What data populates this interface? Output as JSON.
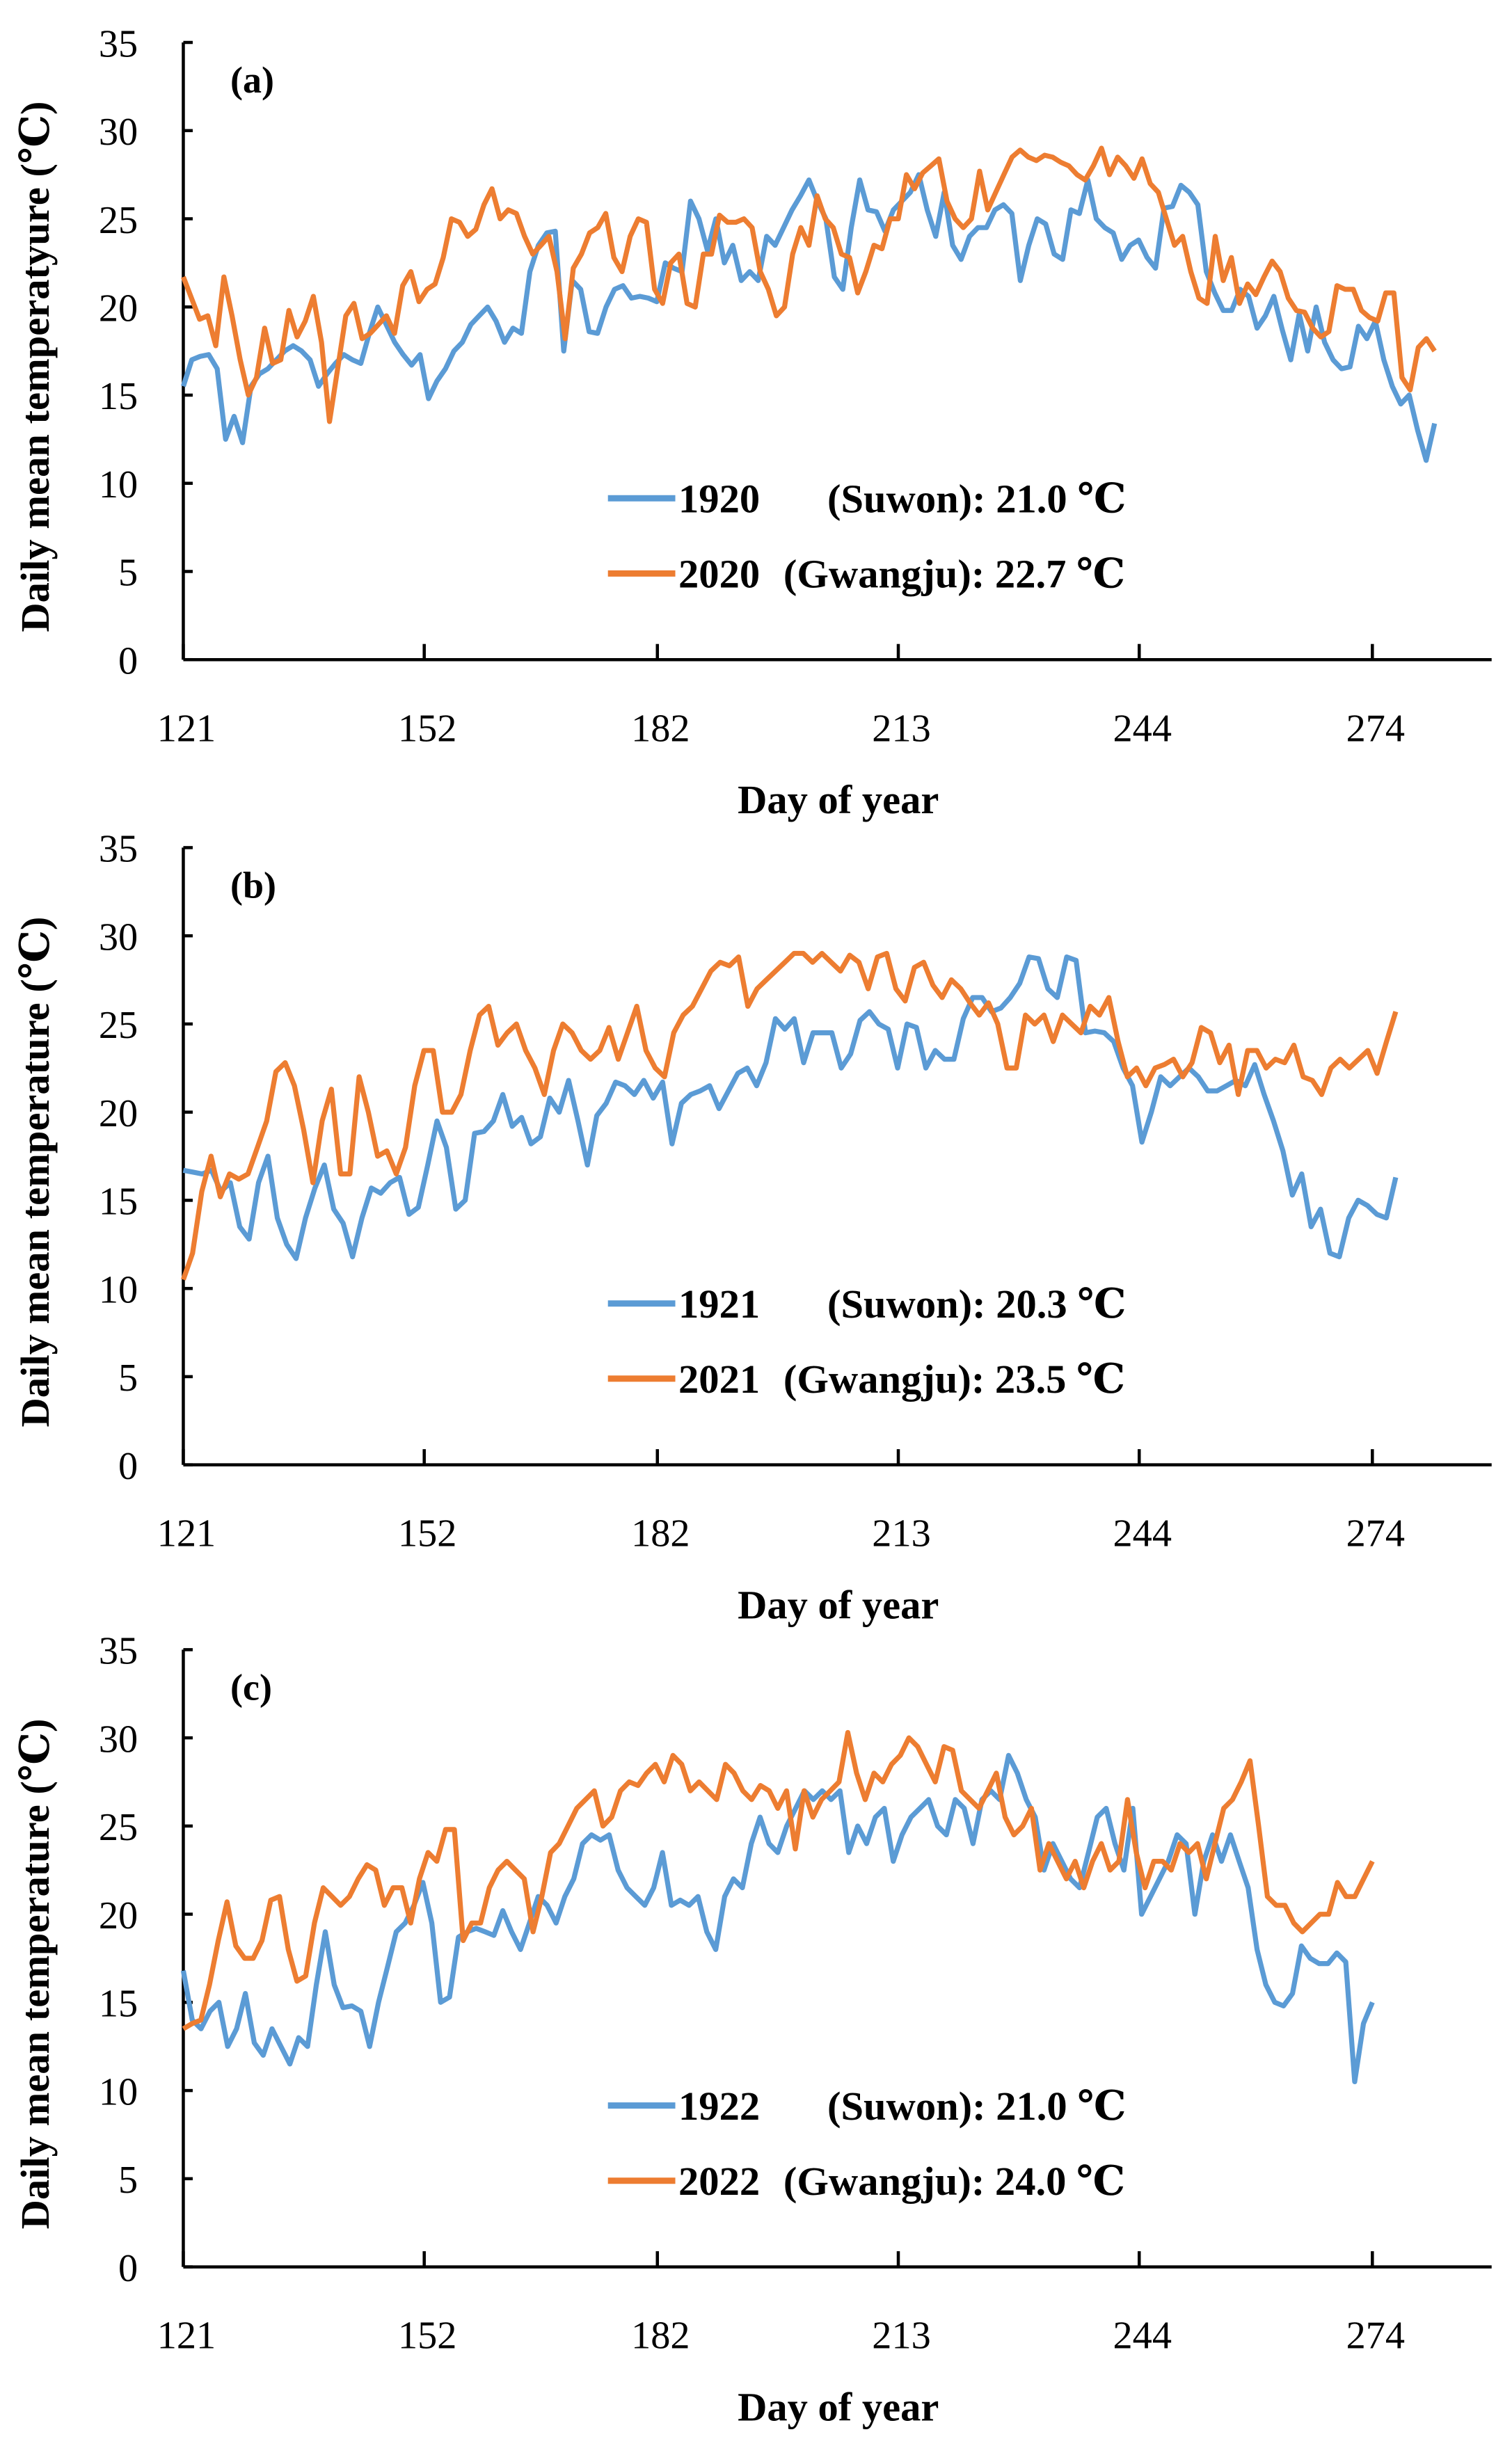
{
  "chart_data": [
    {
      "type": "line",
      "panel_label": "(a)",
      "xlabel": "Day of year",
      "ylabel": "Daily mean temperatyure (℃)",
      "xticks": [
        121,
        152,
        182,
        213,
        244,
        274
      ],
      "yticks": [
        0,
        5,
        10,
        15,
        20,
        25,
        30,
        35
      ],
      "xlim": [
        121,
        290
      ],
      "ylim": [
        0,
        35
      ],
      "grid": false,
      "legend_position": "bottom-center",
      "series": [
        {
          "name": "1920",
          "legend_rest": "(Suwon): 21.0 ℃",
          "color": "#5B9BD5",
          "x_range": [
            121,
            282
          ],
          "values": [
            15.5,
            17,
            17.2,
            17.3,
            16.5,
            12.5,
            13.8,
            12.3,
            15.5,
            16.2,
            16.5,
            17,
            17.5,
            17.8,
            17.5,
            17,
            15.5,
            16.2,
            16.8,
            17.3,
            17,
            16.8,
            18.5,
            20,
            19,
            18,
            17.3,
            16.7,
            17.3,
            14.8,
            15.8,
            16.5,
            17.5,
            18,
            19,
            19.5,
            20,
            19.2,
            18,
            18.8,
            18.5,
            22,
            23.5,
            24.2,
            24.3,
            17.5,
            21.5,
            21,
            18.6,
            18.5,
            20,
            21,
            21.2,
            20.5,
            20.6,
            20.5,
            20.3,
            22.5,
            22.2,
            22,
            26,
            25,
            23.2,
            25,
            22.5,
            23.5,
            21.5,
            22,
            21.5,
            24,
            23.5,
            24.5,
            25.5,
            26.3,
            27.2,
            26,
            25,
            21.7,
            21,
            24.5,
            27.2,
            25.5,
            25.4,
            24.3,
            25.5,
            26,
            26.5,
            27.5,
            25.5,
            24,
            26.5,
            23.5,
            22.7,
            24,
            24.5,
            24.5,
            25.5,
            25.8,
            25.3,
            21.5,
            23.5,
            25,
            24.7,
            23,
            22.7,
            25.5,
            25.3,
            27.2,
            25,
            24.5,
            24.2,
            22.7,
            23.5,
            23.8,
            22.8,
            22.2,
            25.6,
            25.7,
            26.9,
            26.5,
            25.8,
            22,
            20.8,
            19.8,
            19.8,
            21,
            20.6,
            18.8,
            19.5,
            20.6,
            18.7,
            17,
            19.6,
            17.5,
            20,
            18,
            17,
            16.5,
            16.6,
            18.9,
            18.2,
            19.2,
            17,
            15.5,
            14.5,
            15,
            13,
            11.3,
            13.4
          ]
        },
        {
          "name": "2020",
          "legend_rest": "(Gwangju): 22.7 ℃",
          "color": "#ED7D31",
          "x_range": [
            121,
            282
          ],
          "values": [
            21.7,
            20.5,
            19.3,
            19.5,
            17.8,
            21.7,
            19.5,
            17,
            15,
            16,
            18.8,
            16.8,
            17,
            19.8,
            18.3,
            19.2,
            20.6,
            18,
            13.5,
            16.5,
            19.5,
            20.2,
            18.2,
            18.5,
            19,
            19.5,
            18.5,
            21.2,
            22,
            20.3,
            21,
            21.3,
            22.8,
            25,
            24.8,
            24,
            24.4,
            25.8,
            26.7,
            25,
            25.5,
            25.3,
            24,
            23,
            23.5,
            24,
            22,
            18.2,
            22.2,
            23,
            24.2,
            24.5,
            25.3,
            22.8,
            22,
            24,
            25,
            24.8,
            21,
            20.2,
            22.5,
            23,
            20.2,
            20,
            23,
            23,
            25.2,
            24.8,
            24.8,
            25,
            24.5,
            22,
            21,
            19.5,
            20,
            23,
            24.5,
            23.5,
            26.3,
            25,
            24.5,
            23,
            22.8,
            20.8,
            22,
            23.5,
            23.3,
            25,
            25,
            27.5,
            26.7,
            27.6,
            28,
            28.4,
            26,
            25,
            24.5,
            25,
            27.7,
            25.5,
            26.5,
            27.5,
            28.5,
            28.9,
            28.5,
            28.3,
            28.6,
            28.5,
            28.2,
            28,
            27.5,
            27.2,
            28,
            29,
            27.5,
            28.5,
            28,
            27.3,
            28.4,
            27,
            26.5,
            25,
            23.5,
            24,
            22,
            20.5,
            20.2,
            24,
            21.5,
            22.8,
            20.2,
            21.3,
            20.7,
            21.7,
            22.6,
            22,
            20.5,
            19.8,
            19.7,
            18.8,
            18.3,
            18.6,
            21.2,
            21,
            21,
            19.8,
            19.4,
            19.2,
            20.8,
            20.8,
            16,
            15.3,
            17.7,
            18.2,
            17.5
          ]
        }
      ]
    },
    {
      "type": "line",
      "panel_label": "(b)",
      "xlabel": "Day of year",
      "ylabel": "Daily mean temperature (℃)",
      "xticks": [
        121,
        152,
        182,
        213,
        244,
        274
      ],
      "yticks": [
        0,
        5,
        10,
        15,
        20,
        25,
        30,
        35
      ],
      "xlim": [
        121,
        290
      ],
      "ylim": [
        0,
        35
      ],
      "grid": false,
      "legend_position": "bottom-center",
      "series": [
        {
          "name": "1921",
          "legend_rest": "(Suwon): 20.3 ℃",
          "color": "#5B9BD5",
          "x_range": [
            121,
            277
          ],
          "values": [
            16.7,
            16.6,
            16.5,
            16.7,
            15.5,
            16,
            13.5,
            12.8,
            16,
            17.5,
            14,
            12.5,
            11.7,
            14,
            15.7,
            17,
            14.5,
            13.7,
            11.8,
            14,
            15.7,
            15.4,
            16,
            16.3,
            14.2,
            14.6,
            17,
            19.5,
            18,
            14.5,
            15,
            18.8,
            18.9,
            19.5,
            21,
            19.2,
            19.7,
            18.2,
            18.6,
            20.8,
            20,
            21.8,
            19.5,
            17,
            19.8,
            20.5,
            21.7,
            21.5,
            21,
            21.8,
            20.8,
            21.7,
            18.2,
            20.5,
            21,
            21.2,
            21.5,
            20.2,
            21.2,
            22.2,
            22.5,
            21.5,
            22.8,
            25.3,
            24.7,
            25.3,
            22.8,
            24.5,
            24.5,
            24.5,
            22.5,
            23.3,
            25.2,
            25.7,
            25,
            24.7,
            22.5,
            25,
            24.8,
            22.5,
            23.5,
            23,
            23,
            25.3,
            26.5,
            26.5,
            25.7,
            25.9,
            26.5,
            27.3,
            28.8,
            28.7,
            27,
            26.5,
            28.8,
            28.6,
            24.5,
            24.6,
            24.5,
            24,
            22.5,
            21.5,
            18.3,
            20,
            22,
            21.5,
            22,
            22.5,
            22,
            21.2,
            21.2,
            21.5,
            21.8,
            21.5,
            22.7,
            21,
            19.5,
            17.8,
            15.3,
            16.5,
            13.5,
            14.5,
            12,
            11.8,
            14,
            15,
            14.7,
            14.2,
            14,
            16.3
          ]
        },
        {
          "name": "2021",
          "legend_rest": "(Gwangju): 23.5 ℃",
          "color": "#ED7D31",
          "x_range": [
            121,
            277
          ],
          "values": [
            10.5,
            12,
            15.5,
            17.5,
            15.2,
            16.5,
            16.2,
            16.5,
            18,
            19.5,
            22.3,
            22.8,
            21.5,
            19,
            16,
            19.5,
            21.3,
            16.5,
            16.5,
            22,
            20,
            17.5,
            17.8,
            16.5,
            18,
            21.5,
            23.5,
            23.5,
            20,
            20,
            21,
            23.5,
            25.5,
            26,
            23.8,
            24.5,
            25,
            23.5,
            22.5,
            21,
            23.5,
            25,
            24.5,
            23.5,
            23,
            23.5,
            24.8,
            23,
            24.5,
            26,
            23.5,
            22.5,
            22,
            24.5,
            25.5,
            26,
            27,
            28,
            28.5,
            28.3,
            28.8,
            26,
            27,
            27.5,
            28,
            28.5,
            29,
            29,
            28.5,
            29,
            28.5,
            28,
            28.9,
            28.5,
            27,
            28.8,
            29,
            27,
            26.3,
            28.2,
            28.5,
            27.2,
            26.5,
            27.5,
            27,
            26.2,
            25.5,
            26.2,
            25,
            22.5,
            22.5,
            25.5,
            25,
            25.5,
            24,
            25.5,
            25,
            24.5,
            26,
            25.5,
            26.5,
            24,
            22,
            22.5,
            21.5,
            22.5,
            22.7,
            23,
            22,
            22.8,
            24.8,
            24.5,
            22.8,
            23.8,
            21,
            23.5,
            23.5,
            22.5,
            23,
            22.8,
            23.8,
            22,
            21.8,
            21,
            22.5,
            23,
            22.5,
            23,
            23.5,
            22.2,
            24,
            25.7
          ]
        }
      ]
    },
    {
      "type": "line",
      "panel_label": "(c)",
      "xlabel": "Day of year",
      "ylabel": "Daily mean temperature (℃)",
      "xticks": [
        121,
        152,
        182,
        213,
        244,
        274
      ],
      "yticks": [
        0,
        5,
        10,
        15,
        20,
        25,
        30,
        35
      ],
      "xlim": [
        121,
        290
      ],
      "ylim": [
        0,
        35
      ],
      "grid": false,
      "legend_position": "bottom-center",
      "series": [
        {
          "name": "1922",
          "legend_rest": "(Suwon): 21.0 ℃",
          "color": "#5B9BD5",
          "x_range": [
            121,
            274
          ],
          "values": [
            16.8,
            14,
            13.5,
            14.5,
            15,
            12.5,
            13.5,
            15.5,
            12.7,
            12,
            13.5,
            12.5,
            11.5,
            13,
            12.5,
            16,
            19,
            16,
            14.7,
            14.8,
            14.5,
            12.5,
            15,
            17,
            19,
            19.5,
            20.5,
            21.8,
            19.5,
            15,
            15.3,
            18.7,
            19,
            19.2,
            19,
            18.8,
            20.2,
            19,
            18,
            19.5,
            21,
            20.5,
            19.5,
            21,
            22,
            24,
            24.5,
            24.2,
            24.5,
            22.5,
            21.5,
            21,
            20.5,
            21.5,
            23.5,
            20.5,
            20.8,
            20.5,
            21,
            19,
            18,
            21,
            22,
            21.5,
            24,
            25.5,
            24,
            23.5,
            25,
            26,
            27,
            26.5,
            27,
            26.5,
            27,
            23.5,
            25,
            24,
            25.5,
            26,
            23,
            24.5,
            25.5,
            26,
            26.5,
            25,
            24.5,
            26.5,
            26,
            24,
            26.5,
            27,
            26.5,
            29,
            28,
            26.5,
            25.5,
            22.5,
            24,
            23,
            22,
            21.5,
            23.5,
            25.5,
            26,
            24,
            22.5,
            26,
            20,
            21,
            22,
            23,
            24.5,
            24,
            20,
            23,
            24.5,
            23,
            24.5,
            23,
            21.5,
            18,
            16,
            15,
            14.8,
            15.5,
            18.2,
            17.5,
            17.2,
            17.2,
            17.8,
            17.3,
            10.5,
            13.8,
            15
          ]
        },
        {
          "name": "2022",
          "legend_rest": "(Gwangju): 24.0 ℃",
          "color": "#ED7D31",
          "x_range": [
            121,
            274
          ],
          "values": [
            13.5,
            13.8,
            14,
            16,
            18.5,
            20.7,
            18.2,
            17.5,
            17.5,
            18.5,
            20.8,
            21,
            18,
            16.2,
            16.5,
            19.5,
            21.5,
            21,
            20.5,
            21,
            22,
            22.8,
            22.5,
            20.5,
            21.5,
            21.5,
            19.5,
            22,
            23.5,
            23,
            24.8,
            24.8,
            18.5,
            19.5,
            19.5,
            21.5,
            22.5,
            23,
            22.5,
            22,
            19,
            21,
            23.5,
            24,
            25,
            26,
            26.5,
            27,
            25,
            25.5,
            27,
            27.5,
            27.3,
            28,
            28.5,
            27.5,
            29,
            28.5,
            27,
            27.5,
            27,
            26.5,
            28.5,
            28,
            27,
            26.5,
            27.3,
            27,
            26,
            27,
            23.7,
            27,
            25.5,
            26.5,
            27,
            27.5,
            30.3,
            28,
            26.5,
            28,
            27.5,
            28.5,
            29,
            30,
            29.5,
            28.5,
            27.5,
            29.5,
            29.3,
            27,
            26.5,
            26,
            27,
            28,
            25.5,
            24.5,
            25,
            26,
            22.5,
            24,
            23,
            22,
            23,
            21.5,
            23,
            24,
            22.5,
            23,
            26.5,
            23.5,
            21.5,
            23,
            23,
            22.5,
            24,
            23.5,
            24,
            22,
            24,
            26,
            26.5,
            27.5,
            28.7,
            25,
            21,
            20.5,
            20.5,
            19.5,
            19,
            19.5,
            20,
            20,
            21.8,
            21,
            21,
            22,
            23
          ]
        }
      ]
    }
  ]
}
